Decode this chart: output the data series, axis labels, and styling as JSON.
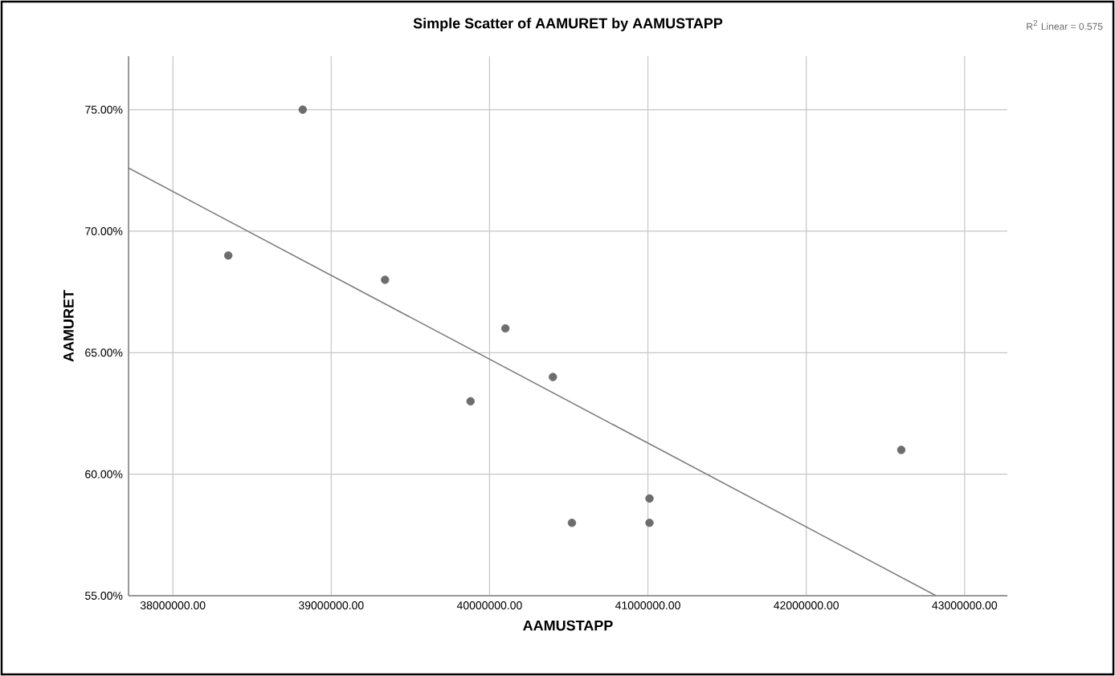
{
  "chart_data": {
    "type": "scatter",
    "title": "Simple Scatter of AAMURET by AAMUSTAPP",
    "xlabel": "AAMUSTAPP",
    "ylabel": "AAMURET",
    "annotations": [
      "R$^{2}$ Linear = 0.575"
    ],
    "series": [
      {
        "color": "#6d6d6d",
        "marker": "circle",
        "x": [
          38820000,
          38350000,
          39340000,
          39880000,
          40100000,
          40400000,
          40520000,
          41010000,
          41010000,
          42600000
        ],
        "values": [
          75,
          69,
          68,
          63,
          66,
          64,
          58,
          59,
          58,
          61
        ]
      },
      {
        "type": "line",
        "color": "#808080",
        "marker": "none",
        "x": [
          37720000,
          42820000
        ],
        "values": [
          72.6,
          55
        ]
      }
    ],
    "grid": true,
    "xlim": [
      37720000,
      43270000
    ],
    "ylim": [
      55,
      77.2
    ],
    "xticks": [
      {
        "value": 38000000,
        "label": "38000000.00"
      },
      {
        "value": 39000000,
        "label": "39000000.00"
      },
      {
        "value": 40000000,
        "label": "40000000.00"
      },
      {
        "value": 41000000,
        "label": "41000000.00"
      },
      {
        "value": 42000000,
        "label": "42000000.00"
      },
      {
        "value": 43000000,
        "label": "43000000.00"
      }
    ],
    "yticks": [
      {
        "value": 55,
        "label": "55.00%"
      },
      {
        "value": 60,
        "label": "60.00%"
      },
      {
        "value": 65,
        "label": "65.00%"
      },
      {
        "value": 70,
        "label": "70.00%"
      },
      {
        "value": 75,
        "label": "75.00%"
      }
    ]
  }
}
